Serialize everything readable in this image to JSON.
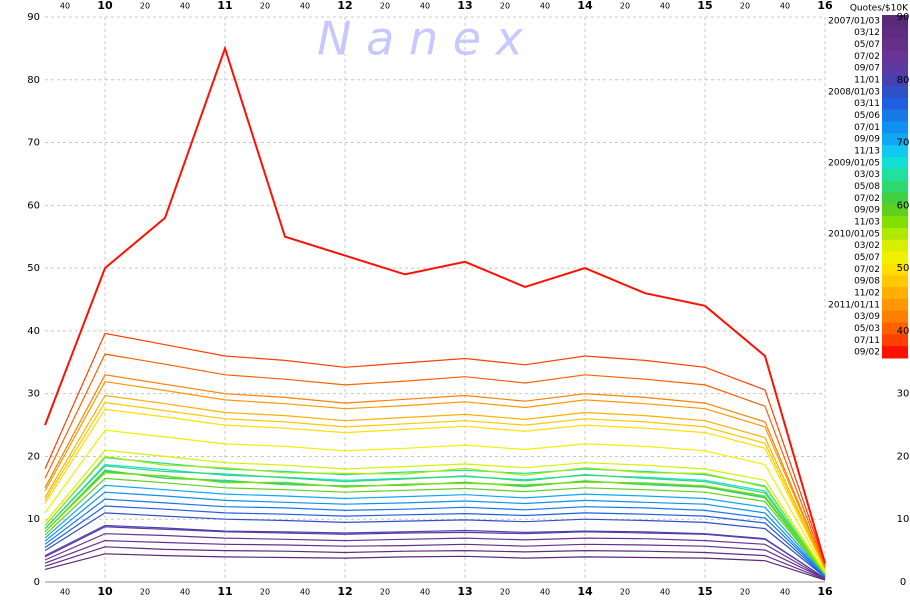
{
  "chart_data": {
    "type": "line",
    "watermark": "N a n e x",
    "legend_title": "Quotes/$10K",
    "grid": true,
    "x": [
      9.5,
      10,
      10.5,
      11,
      11.5,
      12,
      12.5,
      13,
      13.5,
      14,
      14.5,
      15,
      15.5,
      16
    ],
    "xlim": [
      9.5,
      16
    ],
    "xticks": [
      {
        "value": 9.6667,
        "label": "40"
      },
      10,
      {
        "value": 10.3333,
        "label": "20"
      },
      {
        "value": 10.6667,
        "label": "40"
      },
      11,
      {
        "value": 11.3333,
        "label": "20"
      },
      {
        "value": 11.6667,
        "label": "40"
      },
      12,
      {
        "value": 12.3333,
        "label": "20"
      },
      {
        "value": 12.6667,
        "label": "40"
      },
      13,
      {
        "value": 13.3333,
        "label": "20"
      },
      {
        "value": 13.6667,
        "label": "40"
      },
      14,
      {
        "value": 14.3333,
        "label": "20"
      },
      {
        "value": 14.6667,
        "label": "40"
      },
      15,
      {
        "value": 15.3333,
        "label": "20"
      },
      {
        "value": 15.6667,
        "label": "40"
      },
      16
    ],
    "ylim": [
      0,
      90
    ],
    "yticks": [
      0,
      10,
      20,
      30,
      40,
      50,
      60,
      70,
      80,
      90
    ],
    "series": [
      {
        "name": "2007/01/03",
        "color": "#5a2a78",
        "values": [
          2,
          4.5,
          4.2,
          4,
          3.9,
          3.8,
          4,
          4.1,
          3.8,
          4,
          3.9,
          3.8,
          3.4,
          0.3
        ]
      },
      {
        "name": "03/12",
        "color": "#602c80",
        "values": [
          2.5,
          5.6,
          5.2,
          5,
          4.9,
          4.7,
          4.9,
          5,
          4.8,
          5,
          4.9,
          4.7,
          4.2,
          0.4
        ]
      },
      {
        "name": "05/07",
        "color": "#66308a",
        "values": [
          3,
          6.6,
          6.3,
          6,
          5.9,
          5.7,
          5.8,
          6,
          5.7,
          6,
          5.9,
          5.7,
          5.1,
          0.5
        ]
      },
      {
        "name": "07/02",
        "color": "#6a3494",
        "values": [
          3.5,
          7.7,
          7.4,
          7,
          6.8,
          6.6,
          6.8,
          7,
          6.7,
          7,
          6.9,
          6.6,
          6,
          0.5
        ]
      },
      {
        "name": "09/07",
        "color": "#5c3aa0",
        "values": [
          4,
          8.8,
          8.4,
          8,
          7.8,
          7.6,
          7.8,
          7.9,
          7.7,
          8,
          7.8,
          7.6,
          6.8,
          0.6
        ]
      },
      {
        "name": "11/01",
        "color": "#4a40b0",
        "values": [
          4.2,
          9,
          8.6,
          8.1,
          8,
          7.8,
          8,
          8.2,
          7.9,
          8.1,
          8,
          7.7,
          6.9,
          0.6
        ]
      },
      {
        "name": "2008/01/03",
        "color": "#3050c8",
        "values": [
          5,
          11,
          10.5,
          10,
          9.8,
          9.5,
          9.7,
          9.9,
          9.6,
          10,
          9.8,
          9.5,
          8.5,
          0.8
        ]
      },
      {
        "name": "03/11",
        "color": "#2060e0",
        "values": [
          5.5,
          12.1,
          11.6,
          11,
          10.8,
          10.5,
          10.7,
          10.9,
          10.6,
          11,
          10.8,
          10.5,
          9.4,
          0.9
        ]
      },
      {
        "name": "05/06",
        "color": "#1878e8",
        "values": [
          6,
          13.2,
          12.6,
          12,
          11.8,
          11.4,
          11.6,
          11.9,
          11.5,
          12,
          11.8,
          11.4,
          10.2,
          1
        ]
      },
      {
        "name": "07/01",
        "color": "#1090f0",
        "values": [
          6.5,
          14.3,
          13.7,
          13,
          12.7,
          12.4,
          12.6,
          12.9,
          12.5,
          13,
          12.7,
          12.4,
          11,
          1
        ]
      },
      {
        "name": "09/09",
        "color": "#10a8f0",
        "values": [
          7,
          15.4,
          14.7,
          14,
          13.7,
          13.3,
          13.6,
          13.9,
          13.4,
          14,
          13.7,
          13.3,
          11.9,
          1.1
        ]
      },
      {
        "name": "11/13",
        "color": "#10c8f0",
        "values": [
          8,
          17.6,
          16.8,
          16,
          15.7,
          15.2,
          15.5,
          15.8,
          15.4,
          16,
          15.7,
          15.2,
          13.6,
          1.3
        ]
      },
      {
        "name": "2009/01/05",
        "color": "#10e0d0",
        "values": [
          8.5,
          18.7,
          17.9,
          17,
          16.7,
          16.2,
          16.5,
          16.8,
          16.3,
          17,
          16.7,
          16.2,
          14.5,
          1.4
        ]
      },
      {
        "name": "03/03",
        "color": "#20e0a0",
        "values": [
          9,
          19.8,
          18.9,
          18,
          17.6,
          17.1,
          17.5,
          17.8,
          17.3,
          18,
          17.6,
          17.1,
          15.3,
          1.4
        ]
      },
      {
        "name": "05/08",
        "color": "#30d870",
        "values": [
          8.5,
          18.5,
          17.6,
          17.2,
          16.6,
          16,
          16.4,
          16.9,
          16.1,
          17.1,
          16.5,
          16,
          14.2,
          1.3
        ]
      },
      {
        "name": "07/02",
        "color": "#40d040",
        "values": [
          8,
          17.8,
          16.5,
          16.2,
          15.5,
          15.3,
          15.4,
          15.9,
          15.2,
          16.1,
          15.5,
          15.1,
          13.4,
          1.2
        ]
      },
      {
        "name": "09/09",
        "color": "#60d020",
        "values": [
          7.5,
          16.5,
          15.8,
          15,
          14.7,
          14.3,
          14.6,
          14.9,
          14.4,
          15,
          14.7,
          14.3,
          12.8,
          1.2
        ]
      },
      {
        "name": "11/03",
        "color": "#80e000",
        "values": [
          8,
          17.4,
          16.9,
          15.8,
          15.9,
          15.1,
          15.6,
          15.7,
          15.5,
          15.9,
          15.8,
          15.3,
          13.7,
          1.3
        ]
      },
      {
        "name": "2010/01/05",
        "color": "#b0e800",
        "values": [
          9,
          20,
          18.6,
          18.2,
          17.4,
          17.3,
          17.2,
          18.1,
          17,
          18.2,
          17.4,
          17.3,
          15.1,
          1.4
        ]
      },
      {
        "name": "03/02",
        "color": "#d8f000",
        "values": [
          9.5,
          21,
          20,
          19,
          18.6,
          18,
          18.4,
          18.8,
          18.2,
          19,
          18.6,
          18,
          16.2,
          1.5
        ]
      },
      {
        "name": "05/07",
        "color": "#f0f000",
        "values": [
          11,
          24.2,
          23.1,
          22,
          21.6,
          20.9,
          21.3,
          21.8,
          21.1,
          22,
          21.6,
          20.9,
          18.7,
          1.8
        ]
      },
      {
        "name": "07/02",
        "color": "#ffe000",
        "values": [
          12.5,
          27.5,
          26.3,
          25,
          24.5,
          23.8,
          24.3,
          24.8,
          24,
          25,
          24.5,
          23.8,
          21.3,
          2
        ]
      },
      {
        "name": "09/08",
        "color": "#ffc800",
        "values": [
          13,
          28.6,
          27.3,
          26,
          25.5,
          24.7,
          25.2,
          25.7,
          25,
          26,
          25.5,
          24.7,
          22.1,
          2.1
        ]
      },
      {
        "name": "11/02",
        "color": "#ffb000",
        "values": [
          13.5,
          29.7,
          28.4,
          27,
          26.5,
          25.7,
          26.2,
          26.7,
          25.9,
          27,
          26.5,
          25.7,
          23,
          2.2
        ]
      },
      {
        "name": "2011/01/11",
        "color": "#ff9800",
        "values": [
          14.5,
          31.9,
          30.5,
          29,
          28.4,
          27.6,
          28.1,
          28.7,
          27.8,
          29,
          28.4,
          27.6,
          24.7,
          2.3
        ]
      },
      {
        "name": "03/09",
        "color": "#ff8000",
        "values": [
          15,
          33,
          31.5,
          30,
          29.4,
          28.5,
          29.1,
          29.7,
          28.8,
          30,
          29.4,
          28.5,
          25.5,
          2.4
        ]
      },
      {
        "name": "05/03",
        "color": "#ff6000",
        "values": [
          16.5,
          36.3,
          34.7,
          33,
          32.3,
          31.4,
          32,
          32.7,
          31.7,
          33,
          32.3,
          31.4,
          28,
          2.6
        ]
      },
      {
        "name": "07/11",
        "color": "#ff4000",
        "values": [
          18,
          39.6,
          37.8,
          36,
          35.3,
          34.2,
          34.9,
          35.6,
          34.6,
          36,
          35.3,
          34.2,
          30.6,
          2.9
        ]
      },
      {
        "name": "09/02",
        "color": "#ff1000",
        "values": [
          25,
          50,
          58,
          85,
          55,
          52,
          49,
          51,
          47,
          50,
          46,
          44,
          36,
          3
        ]
      }
    ]
  }
}
